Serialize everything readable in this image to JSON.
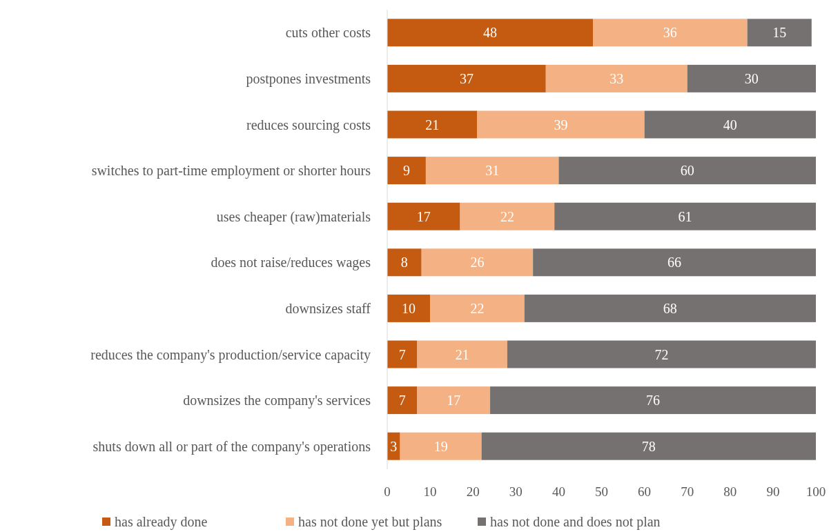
{
  "chart_data": {
    "type": "bar",
    "orientation": "horizontal",
    "stacked": true,
    "data_labels": true,
    "grid": false,
    "legend": "bottom",
    "categories": [
      "cuts other costs",
      "postpones investments",
      "reduces sourcing costs",
      "switches to part-time employment or shorter hours",
      "uses cheaper (raw)materials",
      "does not raise/reduces wages",
      "downsizes staff",
      "reduces the company's production/service capacity",
      "downsizes the company's services",
      "shuts down all or part of the company's operations"
    ],
    "series": [
      {
        "name": "has already done",
        "color": "#c55a11",
        "values": [
          48,
          37,
          21,
          9,
          17,
          8,
          10,
          7,
          7,
          3
        ]
      },
      {
        "name": "has not done yet but plans",
        "color": "#f4b183",
        "values": [
          36,
          33,
          39,
          31,
          22,
          26,
          22,
          21,
          17,
          19
        ]
      },
      {
        "name": "has not done and does not plan",
        "color": "#767171",
        "values": [
          15,
          30,
          40,
          60,
          61,
          66,
          68,
          72,
          76,
          78
        ]
      }
    ],
    "xlim": [
      0,
      100
    ],
    "xticks": [
      0,
      10,
      20,
      30,
      40,
      50,
      60,
      70,
      80,
      90,
      100
    ]
  }
}
